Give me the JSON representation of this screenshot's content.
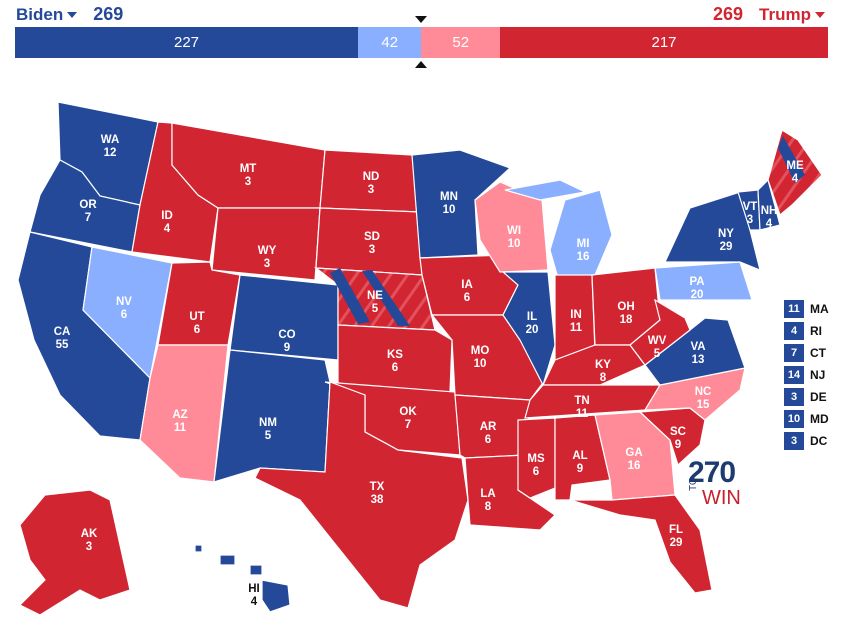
{
  "header": {
    "left": {
      "name": "Biden",
      "ev": "269"
    },
    "right": {
      "name": "Trump",
      "ev": "269"
    }
  },
  "colors": {
    "safe_dem": "#244999",
    "lean_dem": "#8aafff",
    "lean_rep": "#ff8b98",
    "safe_rep": "#d22532"
  },
  "bar": [
    {
      "value": "227",
      "seats": 227,
      "color": "#244999"
    },
    {
      "value": "42",
      "seats": 42,
      "color": "#8aafff"
    },
    {
      "value": "52",
      "seats": 52,
      "color": "#ff8b98"
    },
    {
      "value": "217",
      "seats": 217,
      "color": "#d22532"
    }
  ],
  "states": {
    "WA": {
      "abbr": "WA",
      "ev": "12",
      "rating": "safe_dem"
    },
    "OR": {
      "abbr": "OR",
      "ev": "7",
      "rating": "safe_dem"
    },
    "CA": {
      "abbr": "CA",
      "ev": "55",
      "rating": "safe_dem"
    },
    "NV": {
      "abbr": "NV",
      "ev": "6",
      "rating": "lean_dem"
    },
    "ID": {
      "abbr": "ID",
      "ev": "4",
      "rating": "safe_rep"
    },
    "MT": {
      "abbr": "MT",
      "ev": "3",
      "rating": "safe_rep"
    },
    "WY": {
      "abbr": "WY",
      "ev": "3",
      "rating": "safe_rep"
    },
    "UT": {
      "abbr": "UT",
      "ev": "6",
      "rating": "safe_rep"
    },
    "AZ": {
      "abbr": "AZ",
      "ev": "11",
      "rating": "lean_rep"
    },
    "CO": {
      "abbr": "CO",
      "ev": "9",
      "rating": "safe_dem"
    },
    "NM": {
      "abbr": "NM",
      "ev": "5",
      "rating": "safe_dem"
    },
    "ND": {
      "abbr": "ND",
      "ev": "3",
      "rating": "safe_rep"
    },
    "SD": {
      "abbr": "SD",
      "ev": "3",
      "rating": "safe_rep"
    },
    "NE": {
      "abbr": "NE",
      "ev": "5",
      "rating": "split"
    },
    "KS": {
      "abbr": "KS",
      "ev": "6",
      "rating": "safe_rep"
    },
    "OK": {
      "abbr": "OK",
      "ev": "7",
      "rating": "safe_rep"
    },
    "TX": {
      "abbr": "TX",
      "ev": "38",
      "rating": "safe_rep"
    },
    "MN": {
      "abbr": "MN",
      "ev": "10",
      "rating": "safe_dem"
    },
    "IA": {
      "abbr": "IA",
      "ev": "6",
      "rating": "safe_rep"
    },
    "MO": {
      "abbr": "MO",
      "ev": "10",
      "rating": "safe_rep"
    },
    "AR": {
      "abbr": "AR",
      "ev": "6",
      "rating": "safe_rep"
    },
    "LA": {
      "abbr": "LA",
      "ev": "8",
      "rating": "safe_rep"
    },
    "WI": {
      "abbr": "WI",
      "ev": "10",
      "rating": "lean_rep"
    },
    "IL": {
      "abbr": "IL",
      "ev": "20",
      "rating": "safe_dem"
    },
    "MI": {
      "abbr": "MI",
      "ev": "16",
      "rating": "lean_dem"
    },
    "IN": {
      "abbr": "IN",
      "ev": "11",
      "rating": "safe_rep"
    },
    "OH": {
      "abbr": "OH",
      "ev": "18",
      "rating": "safe_rep"
    },
    "KY": {
      "abbr": "KY",
      "ev": "8",
      "rating": "safe_rep"
    },
    "TN": {
      "abbr": "TN",
      "ev": "11",
      "rating": "safe_rep"
    },
    "MS": {
      "abbr": "MS",
      "ev": "6",
      "rating": "safe_rep"
    },
    "AL": {
      "abbr": "AL",
      "ev": "9",
      "rating": "safe_rep"
    },
    "GA": {
      "abbr": "GA",
      "ev": "16",
      "rating": "lean_rep"
    },
    "FL": {
      "abbr": "FL",
      "ev": "29",
      "rating": "safe_rep"
    },
    "SC": {
      "abbr": "SC",
      "ev": "9",
      "rating": "safe_rep"
    },
    "NC": {
      "abbr": "NC",
      "ev": "15",
      "rating": "lean_rep"
    },
    "VA": {
      "abbr": "VA",
      "ev": "13",
      "rating": "safe_dem"
    },
    "WV": {
      "abbr": "WV",
      "ev": "5",
      "rating": "safe_rep"
    },
    "PA": {
      "abbr": "PA",
      "ev": "20",
      "rating": "lean_dem"
    },
    "NY": {
      "abbr": "NY",
      "ev": "29",
      "rating": "safe_dem"
    },
    "VT": {
      "abbr": "VT",
      "ev": "3",
      "rating": "safe_dem"
    },
    "NH": {
      "abbr": "NH",
      "ev": "4",
      "rating": "safe_dem"
    },
    "ME": {
      "abbr": "ME",
      "ev": "4",
      "rating": "split"
    },
    "AK": {
      "abbr": "AK",
      "ev": "3",
      "rating": "safe_rep"
    },
    "HI": {
      "abbr": "HI",
      "ev": "4",
      "rating": "safe_dem"
    }
  },
  "small_states": [
    {
      "ev": "11",
      "abbr": "MA"
    },
    {
      "ev": "4",
      "abbr": "RI"
    },
    {
      "ev": "7",
      "abbr": "CT"
    },
    {
      "ev": "14",
      "abbr": "NJ"
    },
    {
      "ev": "3",
      "abbr": "DE"
    },
    {
      "ev": "10",
      "abbr": "MD"
    },
    {
      "ev": "3",
      "abbr": "DC"
    }
  ],
  "logo": {
    "number": "270",
    "to": "TO",
    "win": "WIN"
  }
}
